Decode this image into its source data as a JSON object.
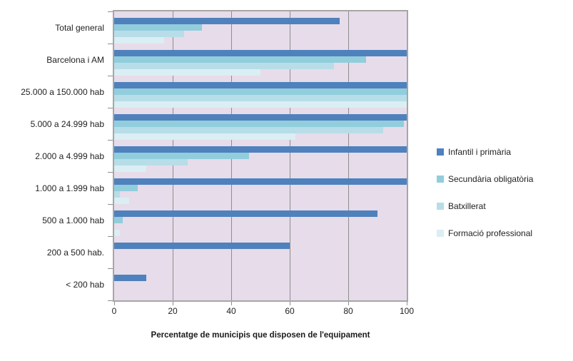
{
  "chart_data": {
    "type": "bar",
    "orientation": "horizontal",
    "title": "",
    "xlabel": "Percentatge de municipis que disposen de l'equipament",
    "ylabel": "",
    "xlim": [
      0,
      100
    ],
    "x_ticks": [
      0,
      20,
      40,
      60,
      80,
      100
    ],
    "grid": true,
    "legend_position": "right",
    "plot_bg_color": "#e7dcea",
    "gridline_color": "#8e8e8e",
    "border_color": "#a6a6a6",
    "categories": [
      "Total general",
      "Barcelona i AM",
      "25.000 a 150.000 hab",
      "5.000 a 24.999 hab",
      "2.000 a 4.999 hab",
      "1.000 a 1.999 hab",
      "500 a 1.000 hab",
      "200 a 500 hab.",
      "< 200 hab"
    ],
    "series": [
      {
        "name": "Infantil i primària",
        "color": "#4f81bd",
        "values": [
          77,
          100,
          100,
          100,
          100,
          100,
          90,
          60,
          11
        ]
      },
      {
        "name": "Secundària obligatòria",
        "color": "#92cddc",
        "values": [
          30,
          86,
          100,
          99,
          46,
          8,
          3,
          0,
          0
        ]
      },
      {
        "name": "Batxillerat",
        "color": "#b7dee8",
        "values": [
          24,
          75,
          100,
          92,
          25,
          2,
          0,
          0,
          0
        ]
      },
      {
        "name": "Formació professional",
        "color": "#daeef3",
        "values": [
          17,
          50,
          100,
          62,
          11,
          5,
          2,
          0,
          0
        ]
      }
    ]
  }
}
